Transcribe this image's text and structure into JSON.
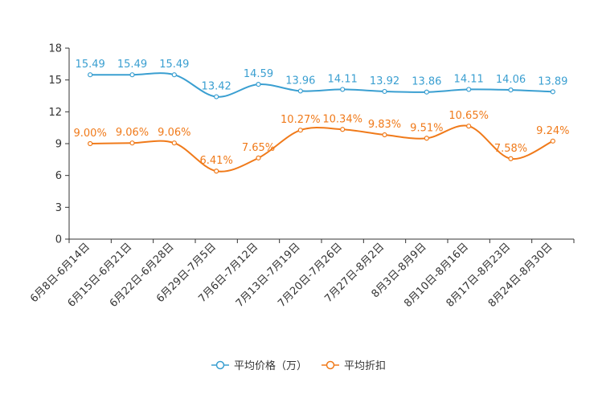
{
  "chart_data": {
    "type": "line",
    "title": "",
    "xlabel": "",
    "ylabel": "",
    "ylim": [
      0,
      18
    ],
    "yticks": [
      0,
      3,
      6,
      9,
      12,
      15,
      18
    ],
    "grid": false,
    "legend_position": "bottom-center",
    "categories": [
      "6月8日-6月14日",
      "6月15日-6月21日",
      "6月22日-6月28日",
      "6月29日-7月5日",
      "7月6日-7月12日",
      "7月13日-7月19日",
      "7月20日-7月26日",
      "7月27日-8月2日",
      "8月3日-8月9日",
      "8月10日-8月16日",
      "8月17日-8月23日",
      "8月24日-8月30日"
    ],
    "series": [
      {
        "name": "平均价格（万）",
        "color": "#3a9fd1",
        "values": [
          15.49,
          15.49,
          15.49,
          13.42,
          14.59,
          13.96,
          14.11,
          13.92,
          13.86,
          14.11,
          14.06,
          13.89
        ],
        "labels": [
          "15.49",
          "15.49",
          "15.49",
          "13.42",
          "14.59",
          "13.96",
          "14.11",
          "13.92",
          "13.86",
          "14.11",
          "14.06",
          "13.89"
        ]
      },
      {
        "name": "平均折扣",
        "color": "#f07a1a",
        "values": [
          9.0,
          9.06,
          9.06,
          6.41,
          7.65,
          10.27,
          10.34,
          9.83,
          9.51,
          10.65,
          7.58,
          9.24
        ],
        "labels": [
          "9.00%",
          "9.06%",
          "9.06%",
          "6.41%",
          "7.65%",
          "10.27%",
          "10.34%",
          "9.83%",
          "9.51%",
          "10.65%",
          "7.58%",
          "9.24%"
        ]
      }
    ]
  }
}
